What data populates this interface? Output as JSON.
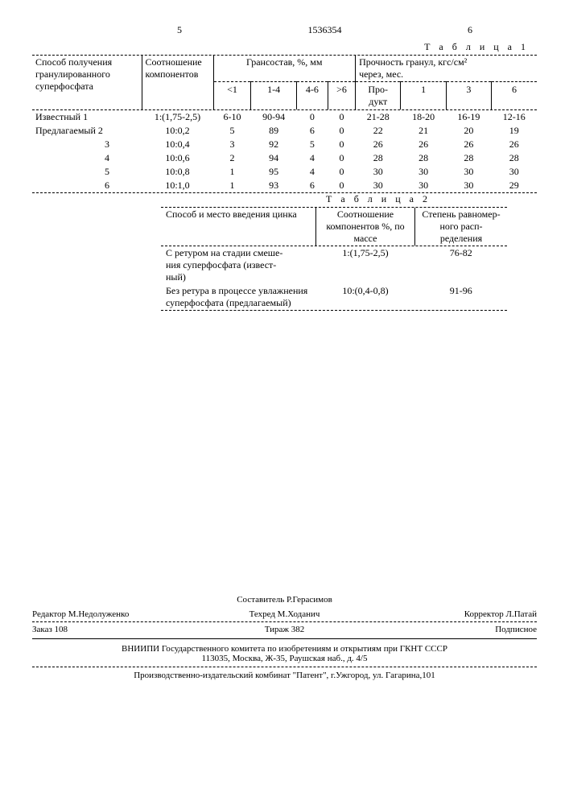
{
  "header": {
    "col5": "5",
    "docnum": "1536354",
    "col6": "6"
  },
  "table1": {
    "caption": "Т а б л и ц а  1",
    "col_method": "Способ получения гранулированного суперфосфата",
    "col_ratio": "Соотношение компонентов",
    "col_gran": "Грансостав, %, мм",
    "col_strength": "Прочность гранул, кгс/см²\nчерез, мес.",
    "sub_lt1": "<1",
    "sub_1_4": "1-4",
    "sub_4_6": "4-6",
    "sub_gt6": ">6",
    "sub_prod": "Про-\nдукт",
    "sub_1": "1",
    "sub_3": "3",
    "sub_6": "6",
    "rows": [
      {
        "m": "Известный 1",
        "r": "1:(1,75-2,5)",
        "a": "6-10",
        "b": "90-94",
        "c": "0",
        "d": "0",
        "p": "21-28",
        "s1": "18-20",
        "s3": "16-19",
        "s6": "12-16"
      },
      {
        "m": "Предлагаемый 2",
        "r": "10:0,2",
        "a": "5",
        "b": "89",
        "c": "6",
        "d": "0",
        "p": "22",
        "s1": "21",
        "s3": "20",
        "s6": "19"
      },
      {
        "m": "3",
        "r": "10:0,4",
        "a": "3",
        "b": "92",
        "c": "5",
        "d": "0",
        "p": "26",
        "s1": "26",
        "s3": "26",
        "s6": "26"
      },
      {
        "m": "4",
        "r": "10:0,6",
        "a": "2",
        "b": "94",
        "c": "4",
        "d": "0",
        "p": "28",
        "s1": "28",
        "s3": "28",
        "s6": "28"
      },
      {
        "m": "5",
        "r": "10:0,8",
        "a": "1",
        "b": "95",
        "c": "4",
        "d": "0",
        "p": "30",
        "s1": "30",
        "s3": "30",
        "s6": "30"
      },
      {
        "m": "6",
        "r": "10:1,0",
        "a": "1",
        "b": "93",
        "c": "6",
        "d": "0",
        "p": "30",
        "s1": "30",
        "s3": "30",
        "s6": "29"
      }
    ]
  },
  "table2": {
    "caption": "Т а б л и ц а  2",
    "col_method": "Способ и место введения цинка",
    "col_ratio": "Соотношение компонентов %, по массе",
    "col_uniform": "Степень равномер-\nного расп-\nределения",
    "rows": [
      {
        "m": "С ретуром на стадии смеше-\nния суперфосфата (извест-\nный)",
        "r": "1:(1,75-2,5)",
        "u": "76-82"
      },
      {
        "m": "Без ретура в процессе увлажнения суперфосфата (предлагаемый)",
        "r": "10:(0,4-0,8)",
        "u": "91-96"
      }
    ]
  },
  "footer": {
    "compiler": "Составитель Р.Герасимов",
    "editor": "Редактор М.Недолуженко",
    "techred": "Техред М.Ходанич",
    "corrector": "Корректор Л.Патай",
    "order": "Заказ 108",
    "tirage": "Тираж 382",
    "sub": "Подписное",
    "org": "ВНИИПИ Государственного комитета по изобретениям и открытиям при ГКНТ СССР",
    "addr": "113035, Москва, Ж-35, Раушская наб., д. 4/5",
    "printer": "Производственно-издательский комбинат \"Патент\", г.Ужгород, ул. Гагарина,101"
  }
}
